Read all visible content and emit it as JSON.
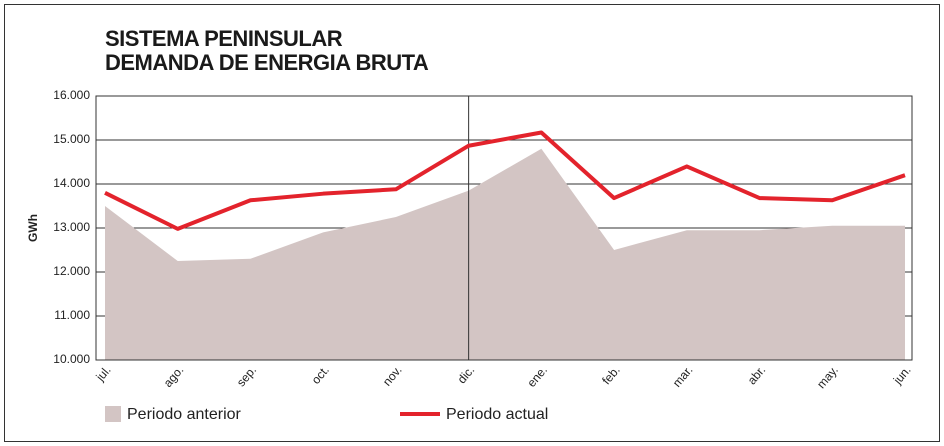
{
  "chart_data": {
    "type": "line",
    "title": "SISTEMA PENINSULAR",
    "subtitle": "DEMANDA DE ENERGIA BRUTA",
    "y_label": "GWh",
    "categories": [
      "jul.",
      "ago.",
      "sep.",
      "oct.",
      "nov.",
      "dic.",
      "ene.",
      "feb.",
      "mar.",
      "abr.",
      "may.",
      "jun."
    ],
    "series": [
      {
        "name": "Periodo anterior",
        "type": "area",
        "color": "#d3c5c4",
        "values": [
          13500,
          12250,
          12300,
          12900,
          13250,
          13850,
          14800,
          12500,
          12950,
          12950,
          13050,
          13050
        ]
      },
      {
        "name": "Periodo actual",
        "type": "line",
        "color": "#e3232c",
        "values": [
          13800,
          12980,
          13630,
          13780,
          13880,
          14870,
          15170,
          13680,
          14400,
          13680,
          13630,
          14200
        ]
      }
    ],
    "ylim": [
      10000,
      16000
    ],
    "yticks": [
      {
        "value": 10000,
        "label": "10.000"
      },
      {
        "value": 11000,
        "label": "11.000"
      },
      {
        "value": 12000,
        "label": "12.000"
      },
      {
        "value": 13000,
        "label": "13.000"
      },
      {
        "value": 14000,
        "label": "14.000"
      },
      {
        "value": 15000,
        "label": "15.000"
      },
      {
        "value": 16000,
        "label": "16.000"
      }
    ],
    "grid": true,
    "legend": "bottom"
  }
}
